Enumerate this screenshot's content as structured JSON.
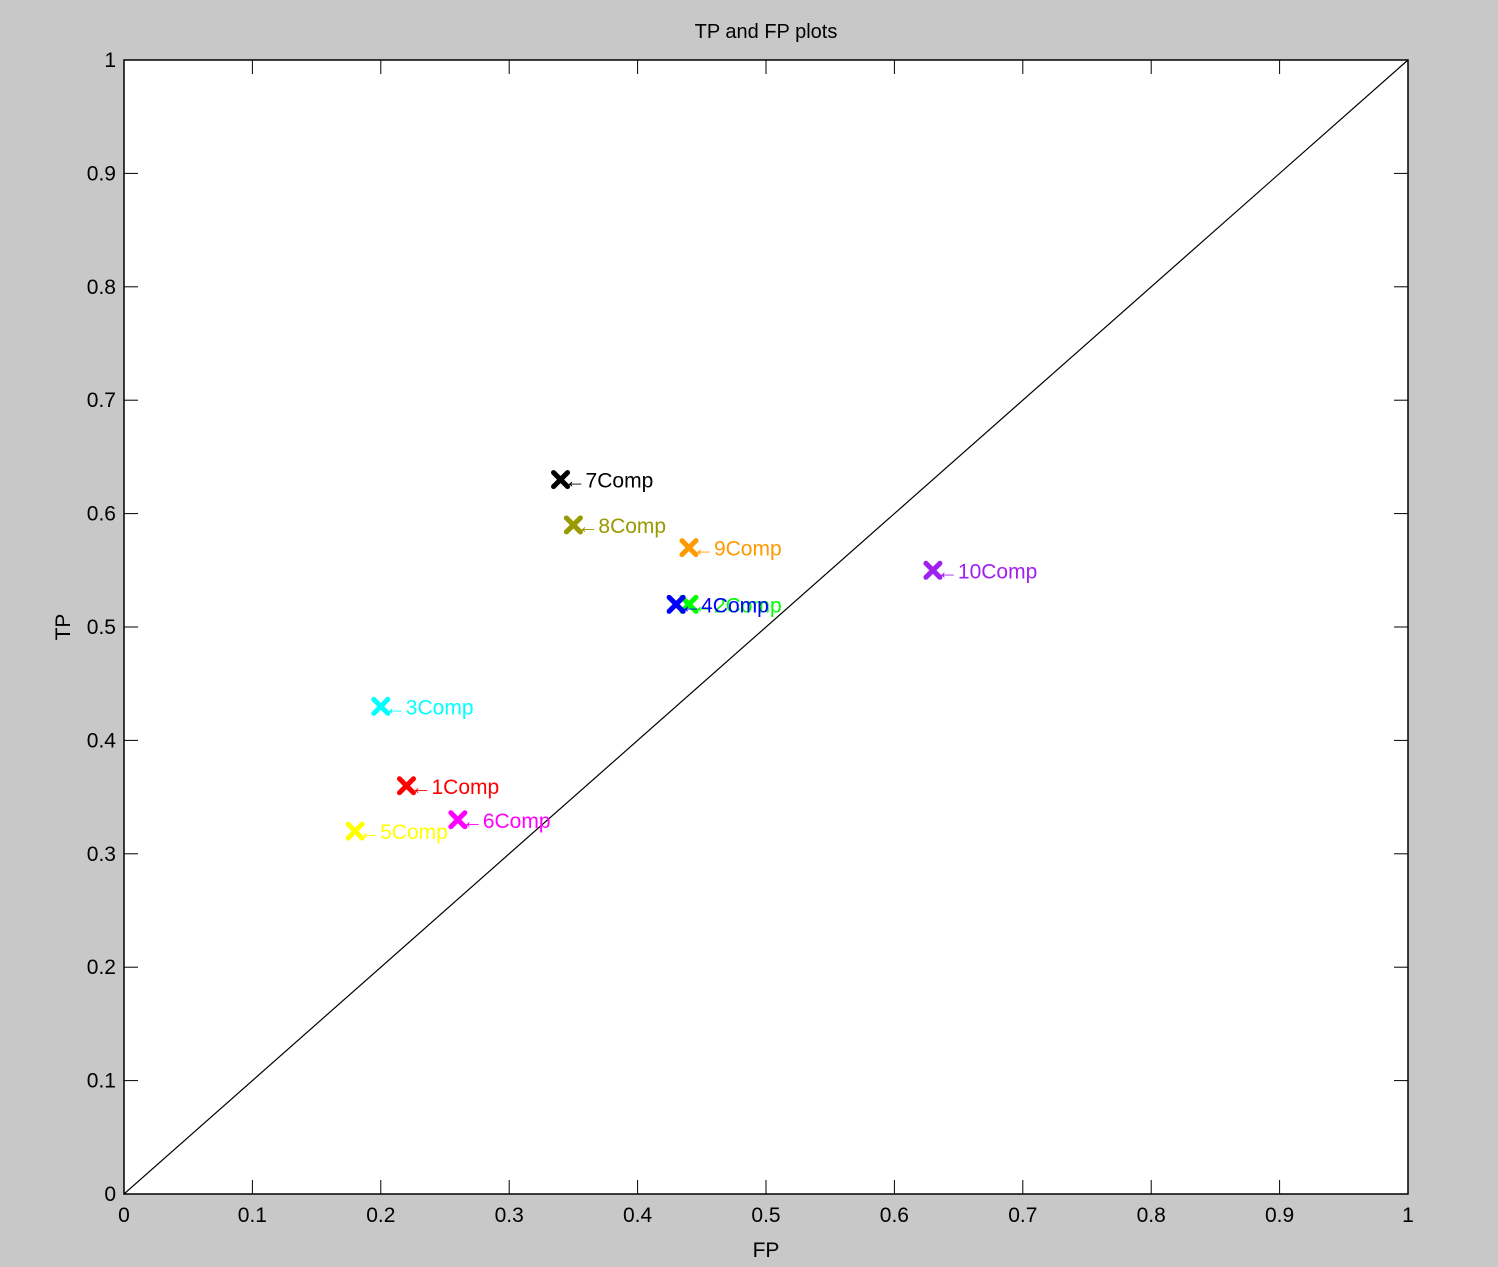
{
  "chart_data": {
    "type": "scatter",
    "title": "TP and FP plots",
    "xlabel": "FP",
    "ylabel": "TP",
    "xlim": [
      0,
      1
    ],
    "ylim": [
      0,
      1
    ],
    "xticks": [
      "0",
      "0.1",
      "0.2",
      "0.3",
      "0.4",
      "0.5",
      "0.6",
      "0.7",
      "0.8",
      "0.9",
      "1"
    ],
    "yticks": [
      "0",
      "0.1",
      "0.2",
      "0.3",
      "0.4",
      "0.5",
      "0.6",
      "0.7",
      "0.8",
      "0.9",
      "1"
    ],
    "grid": false,
    "reference_line": {
      "x": [
        0,
        1
      ],
      "y": [
        0,
        1
      ],
      "color": "#000000"
    },
    "marker": "x",
    "points": [
      {
        "label": "←1Comp",
        "x": 0.22,
        "y": 0.36,
        "color": "#ff0000"
      },
      {
        "label": "←2Comp",
        "x": 0.44,
        "y": 0.52,
        "color": "#00ff00"
      },
      {
        "label": "←3Comp",
        "x": 0.2,
        "y": 0.43,
        "color": "#00ffff"
      },
      {
        "label": "←4Comp",
        "x": 0.43,
        "y": 0.52,
        "color": "#0000ff"
      },
      {
        "label": "←5Comp",
        "x": 0.18,
        "y": 0.32,
        "color": "#ffff00"
      },
      {
        "label": "←6Comp",
        "x": 0.26,
        "y": 0.33,
        "color": "#ff00ff"
      },
      {
        "label": "←7Comp",
        "x": 0.34,
        "y": 0.63,
        "color": "#000000"
      },
      {
        "label": "←8Comp",
        "x": 0.35,
        "y": 0.59,
        "color": "#999900"
      },
      {
        "label": "←9Comp",
        "x": 0.44,
        "y": 0.57,
        "color": "#ff9900"
      },
      {
        "label": "←10Comp",
        "x": 0.63,
        "y": 0.55,
        "color": "#a020f0"
      }
    ]
  }
}
